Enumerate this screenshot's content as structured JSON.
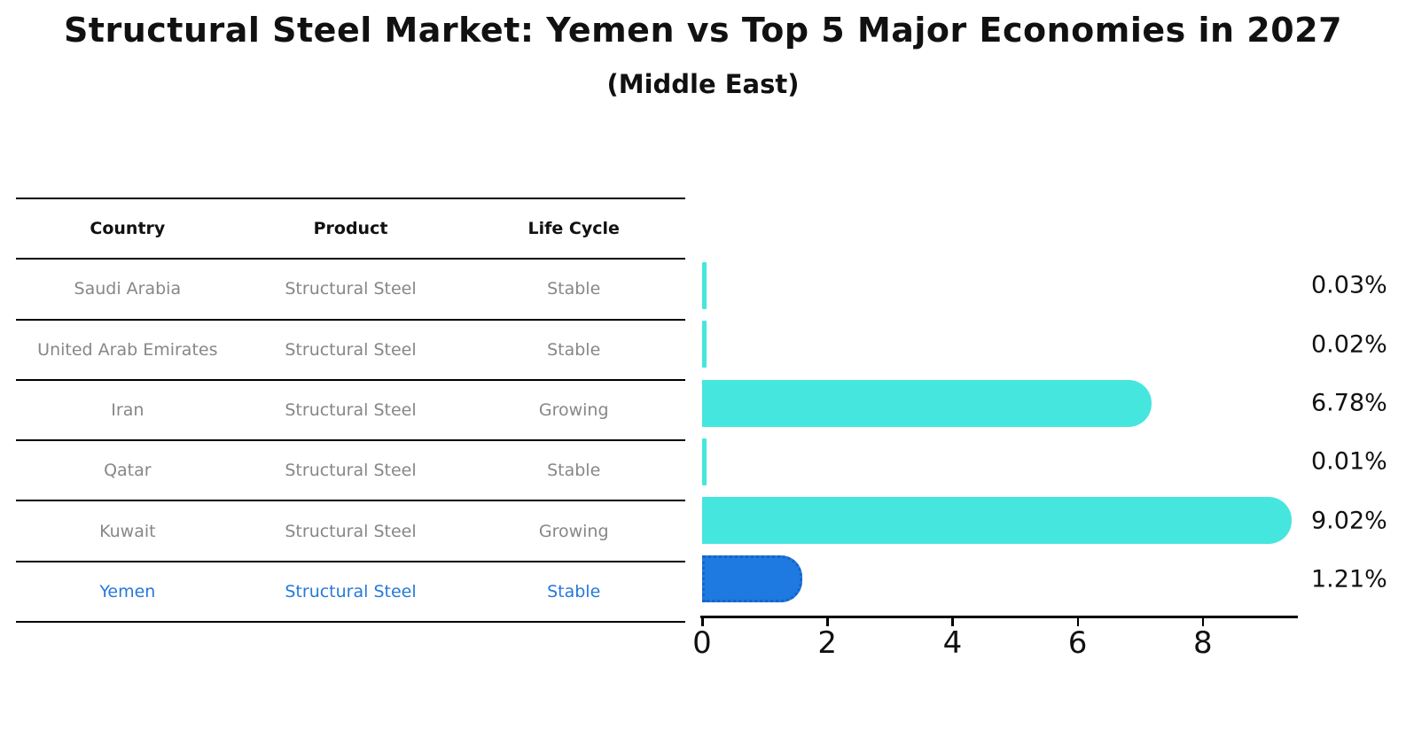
{
  "title": "Structural Steel Market: Yemen vs Top 5 Major Economies in 2027",
  "subtitle": "(Middle East)",
  "colors": {
    "bar_default": "#45E6DE",
    "bar_highlight_fill": "#1E7AE0",
    "bar_highlight_border": "#1563C8",
    "table_text": "#878787",
    "table_header_text": "#111111",
    "highlight_text": "#2679D8",
    "axis": "#000000",
    "background": "#FFFFFF"
  },
  "table": {
    "headers": [
      "Country",
      "Product",
      "Life Cycle"
    ],
    "rows": [
      {
        "country": "Saudi Arabia",
        "product": "Structural Steel",
        "life_cycle": "Stable",
        "highlighted": false
      },
      {
        "country": "United Arab Emirates",
        "product": "Structural Steel",
        "life_cycle": "Stable",
        "highlighted": false
      },
      {
        "country": "Iran",
        "product": "Structural Steel",
        "life_cycle": "Growing",
        "highlighted": false
      },
      {
        "country": "Qatar",
        "product": "Structural Steel",
        "life_cycle": "Stable",
        "highlighted": false
      },
      {
        "country": "Kuwait",
        "product": "Structural Steel",
        "life_cycle": "Growing",
        "highlighted": false
      },
      {
        "country": "Yemen",
        "product": "Structural Steel",
        "life_cycle": "Stable",
        "highlighted": true
      }
    ]
  },
  "chart_data": {
    "type": "bar",
    "orientation": "horizontal",
    "title": "Structural Steel Market: Yemen vs Top 5 Major Economies in 2027",
    "subtitle": "(Middle East)",
    "categories": [
      "Saudi Arabia",
      "United Arab Emirates",
      "Iran",
      "Qatar",
      "Kuwait",
      "Yemen"
    ],
    "values": [
      0.03,
      0.02,
      6.78,
      0.01,
      9.02,
      1.21
    ],
    "value_labels": [
      "0.03%",
      "0.02%",
      "6.78%",
      "0.01%",
      "9.02%",
      "1.21%"
    ],
    "highlight_index": 5,
    "xlabel": "",
    "ylabel": "",
    "x_ticks": [
      0,
      2,
      4,
      6,
      8
    ],
    "xlim": [
      0,
      9.5
    ],
    "grid": false,
    "legend": false
  }
}
